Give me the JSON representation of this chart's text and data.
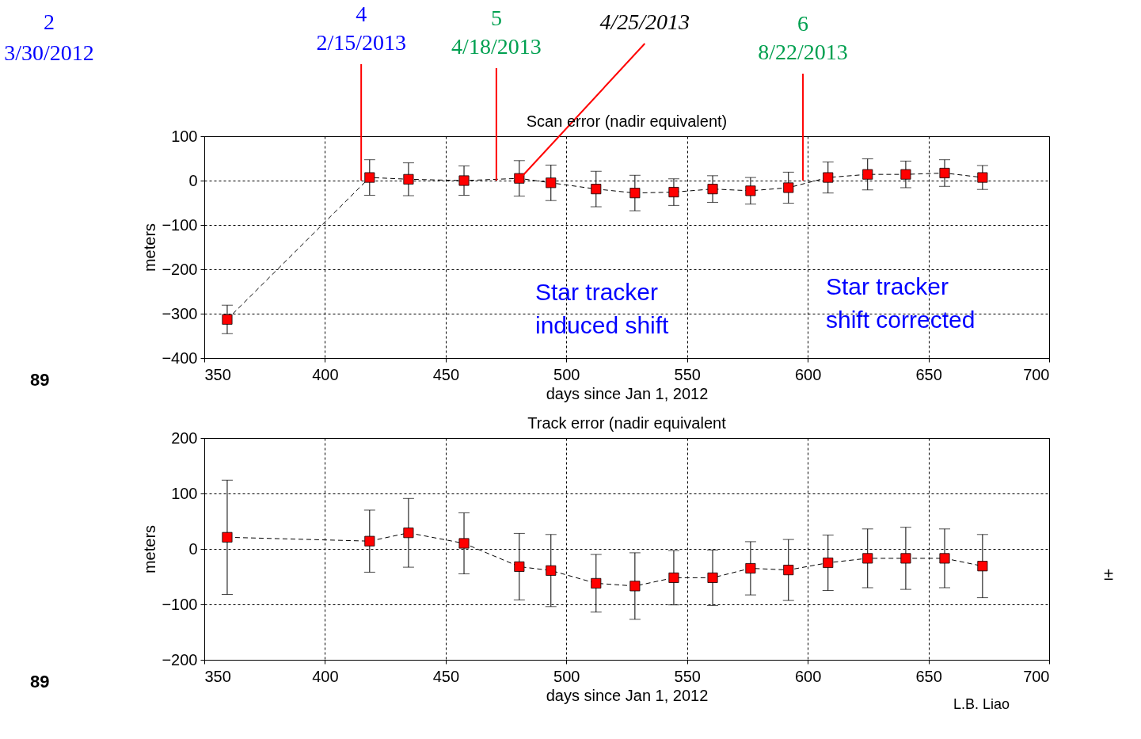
{
  "chart_data": [
    {
      "type": "line",
      "title": "Scan error (nadir equivalent)",
      "xlabel": "days since Jan 1, 2012",
      "ylabel": "meters",
      "x": [
        359.5,
        418.5,
        434.6,
        457.6,
        480.5,
        493.6,
        512.3,
        528.4,
        544.5,
        560.6,
        576.3,
        592,
        608.4,
        624.8,
        640.6,
        656.7,
        672.4
      ],
      "series": [
        {
          "color": "#ff0000",
          "values": [
            -313,
            7,
            3,
            0,
            5,
            -5,
            -19,
            -28,
            -26,
            -19,
            -23,
            -16,
            7,
            14,
            14,
            17,
            7
          ],
          "errors": [
            32,
            40,
            37,
            33,
            40,
            40,
            40,
            40,
            30,
            30,
            30,
            35,
            35,
            35,
            30,
            30,
            27
          ]
        }
      ],
      "xlim": [
        350,
        700
      ],
      "ylim": [
        -400,
        100
      ],
      "xticks": [
        350,
        400,
        450,
        500,
        550,
        600,
        650,
        700
      ],
      "yticks": [
        -400,
        -300,
        -200,
        -100,
        0,
        100
      ],
      "grid": true,
      "marker": "square",
      "line_style": "dashed",
      "annotations": [
        "2\n3/30/2012",
        "89",
        "Star tracker\ninduced shift",
        "Star tracker\nshift corrected",
        {
          "text": "4\n2/15/2013",
          "x": 415,
          "y": 0
        },
        {
          "text": "5\n4/18/2013",
          "x": 471,
          "y": 0
        },
        {
          "text": "4/25/2013",
          "x": 480,
          "y": 0
        },
        {
          "text": "6\n8/22/2013",
          "x": 598,
          "y": 0
        }
      ]
    },
    {
      "type": "line",
      "title": "Track error (nadir equivalent",
      "xlabel": "days since Jan 1, 2012",
      "ylabel": "meters",
      "x": [
        359.5,
        418.5,
        434.6,
        457.6,
        480.5,
        493.6,
        512.3,
        528.4,
        544.5,
        560.6,
        576.3,
        592,
        608.4,
        624.8,
        640.6,
        656.7,
        672.4
      ],
      "series": [
        {
          "color": "#ff0000",
          "values": [
            21,
            14,
            29,
            10,
            -32,
            -39,
            -62,
            -67,
            -52,
            -52,
            -35,
            -38,
            -25,
            -17,
            -17,
            -17,
            -31
          ],
          "errors": [
            103,
            56,
            62,
            55,
            60,
            65,
            52,
            60,
            49,
            50,
            48,
            55,
            50,
            53,
            56,
            53,
            57
          ]
        }
      ],
      "xlim": [
        350,
        700
      ],
      "ylim": [
        -200,
        200
      ],
      "xticks": [
        350,
        400,
        450,
        500,
        550,
        600,
        650,
        700
      ],
      "yticks": [
        -200,
        -100,
        0,
        100,
        200
      ],
      "grid": true,
      "marker": "square",
      "line_style": "dashed",
      "annotations": [
        "89",
        "±",
        "L.B. Liao"
      ]
    }
  ]
}
